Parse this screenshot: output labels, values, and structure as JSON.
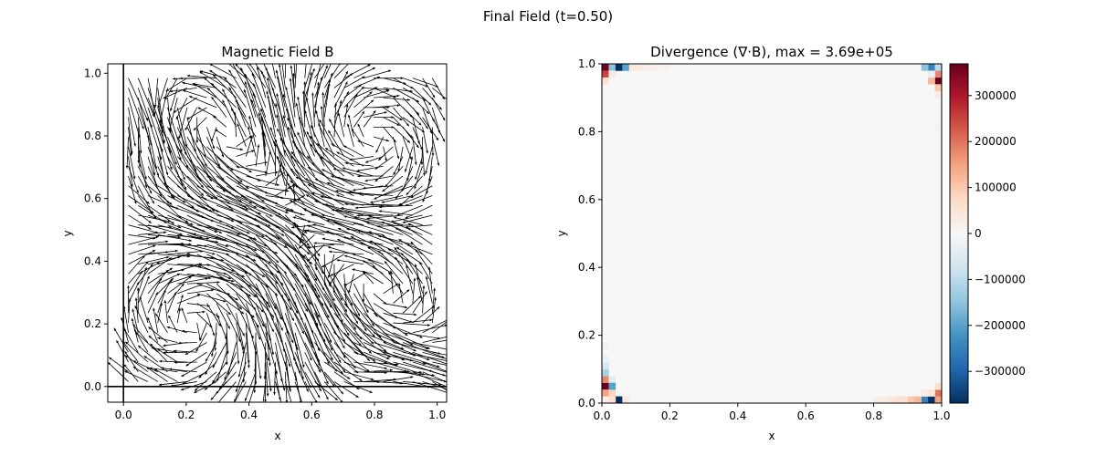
{
  "figure_title": "Final Field (t=0.50)",
  "chart_data": [
    {
      "type": "quiver",
      "title": "Magnetic Field B",
      "xlabel": "x",
      "ylabel": "y",
      "xlim": [
        -0.05,
        1.03
      ],
      "ylim": [
        -0.05,
        1.03
      ],
      "xticks": [
        0.0,
        0.2,
        0.4,
        0.6,
        0.8,
        1.0
      ],
      "yticks": [
        0.0,
        0.2,
        0.4,
        0.6,
        0.8,
        1.0
      ],
      "xtick_labels": [
        "0.0",
        "0.2",
        "0.4",
        "0.6",
        "0.8",
        "1.0"
      ],
      "ytick_labels": [
        "0.0",
        "0.2",
        "0.4",
        "0.6",
        "0.8",
        "1.0"
      ],
      "grid": false,
      "arrow_color": "#000000",
      "grid_points": 32,
      "field_pattern": "swirling vortices with strong diagonal band from top-left to bottom-right"
    },
    {
      "type": "heatmap",
      "title": "Divergence (∇·B), max = 3.69e+05",
      "xlabel": "x",
      "ylabel": "y",
      "xlim": [
        0.0,
        1.0
      ],
      "ylim": [
        0.0,
        1.0
      ],
      "xticks": [
        0.0,
        0.2,
        0.4,
        0.6,
        0.8,
        1.0
      ],
      "yticks": [
        0.0,
        0.2,
        0.4,
        0.6,
        0.8,
        1.0
      ],
      "xtick_labels": [
        "0.0",
        "0.2",
        "0.4",
        "0.6",
        "0.8",
        "1.0"
      ],
      "ytick_labels": [
        "0.0",
        "0.2",
        "0.4",
        "0.6",
        "0.8",
        "1.0"
      ],
      "grid_size": 50,
      "vmin": -369000,
      "vmax": 369000,
      "colormap": "RdBu_r",
      "background_value": 0,
      "colorbar_ticks": [
        300000,
        200000,
        100000,
        0,
        -100000,
        -200000,
        -300000
      ],
      "colorbar_tick_labels": [
        "300000",
        "200000",
        "100000",
        "0",
        "−100000",
        "−200000",
        "−300000"
      ],
      "hot_cells": [
        {
          "i": 0,
          "j": 49,
          "v": 360000
        },
        {
          "i": 0,
          "j": 48,
          "v": 250000
        },
        {
          "i": 1,
          "j": 49,
          "v": -150000
        },
        {
          "i": 2,
          "j": 49,
          "v": -369000
        },
        {
          "i": 3,
          "j": 49,
          "v": -200000
        },
        {
          "i": 1,
          "j": 48,
          "v": 30000
        },
        {
          "i": 0,
          "j": 47,
          "v": 60000
        },
        {
          "i": 4,
          "j": 49,
          "v": 40000
        },
        {
          "i": 5,
          "j": 49,
          "v": 30000
        },
        {
          "i": 6,
          "j": 49,
          "v": 25000
        },
        {
          "i": 7,
          "j": 49,
          "v": 20000
        },
        {
          "i": 8,
          "j": 49,
          "v": 15000
        },
        {
          "i": 9,
          "j": 49,
          "v": 10000
        },
        {
          "i": 49,
          "j": 47,
          "v": 369000
        },
        {
          "i": 48,
          "j": 47,
          "v": 120000
        },
        {
          "i": 48,
          "j": 49,
          "v": -250000
        },
        {
          "i": 47,
          "j": 49,
          "v": -150000
        },
        {
          "i": 49,
          "j": 48,
          "v": 180000
        },
        {
          "i": 49,
          "j": 46,
          "v": 100000
        },
        {
          "i": 49,
          "j": 45,
          "v": 30000
        },
        {
          "i": 48,
          "j": 48,
          "v": -30000
        },
        {
          "i": 49,
          "j": 49,
          "v": -100000
        },
        {
          "i": 0,
          "j": 2,
          "v": 369000
        },
        {
          "i": 0,
          "j": 1,
          "v": 150000
        },
        {
          "i": 0,
          "j": 3,
          "v": 180000
        },
        {
          "i": 1,
          "j": 1,
          "v": 80000
        },
        {
          "i": 0,
          "j": 4,
          "v": -120000
        },
        {
          "i": 0,
          "j": 5,
          "v": -60000
        },
        {
          "i": 1,
          "j": 3,
          "v": -40000
        },
        {
          "i": 1,
          "j": 2,
          "v": -200000
        },
        {
          "i": 2,
          "j": 0,
          "v": -369000
        },
        {
          "i": 1,
          "j": 0,
          "v": 60000
        },
        {
          "i": 3,
          "j": 0,
          "v": 40000
        },
        {
          "i": 0,
          "j": 0,
          "v": 30000
        },
        {
          "i": 0,
          "j": 6,
          "v": -20000
        },
        {
          "i": 0,
          "j": 8,
          "v": -15000
        },
        {
          "i": 47,
          "j": 0,
          "v": -250000
        },
        {
          "i": 48,
          "j": 0,
          "v": -369000
        },
        {
          "i": 49,
          "j": 0,
          "v": 150000
        },
        {
          "i": 46,
          "j": 0,
          "v": 120000
        },
        {
          "i": 45,
          "j": 0,
          "v": 100000
        },
        {
          "i": 44,
          "j": 0,
          "v": 60000
        },
        {
          "i": 43,
          "j": 0,
          "v": 50000
        },
        {
          "i": 42,
          "j": 0,
          "v": 40000
        },
        {
          "i": 41,
          "j": 0,
          "v": 30000
        },
        {
          "i": 40,
          "j": 0,
          "v": 25000
        },
        {
          "i": 49,
          "j": 1,
          "v": 200000
        },
        {
          "i": 48,
          "j": 1,
          "v": 50000
        },
        {
          "i": 49,
          "j": 2,
          "v": 60000
        },
        {
          "i": 47,
          "j": 1,
          "v": 30000
        },
        {
          "i": 49,
          "j": 40,
          "v": -10000
        },
        {
          "i": 49,
          "j": 35,
          "v": -8000
        },
        {
          "i": 0,
          "j": 20,
          "v": -8000
        },
        {
          "i": 0,
          "j": 30,
          "v": -6000
        }
      ]
    }
  ]
}
